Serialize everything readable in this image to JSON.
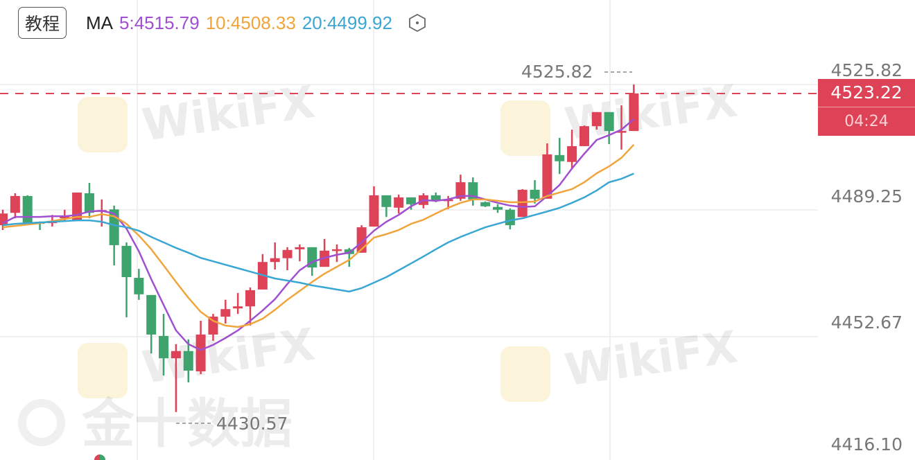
{
  "header": {
    "tutorial_label": "教程",
    "ma_label": "MA",
    "ma5": "5:4515.79",
    "ma10": "10:4508.33",
    "ma20": "20:4499.92",
    "settings_icon": "hexagon-settings-icon"
  },
  "colors": {
    "up": "#dd4257",
    "down": "#3fa36e",
    "ma5": "#a04fd0",
    "ma10": "#f0a43a",
    "ma20": "#3aa6d4"
  },
  "current_price": {
    "price": "4523.22",
    "countdown": "04:24"
  },
  "high_marker": "4525.82",
  "low_marker": "4430.57",
  "watermarks": {
    "brand": "WikiFX",
    "source": "金十数据"
  },
  "chart_data": {
    "type": "candlestick",
    "title": "",
    "y_ticks": [
      "4525.82",
      "4489.25",
      "4452.67",
      "4416.10"
    ],
    "ylim": [
      4416.1,
      4525.82
    ],
    "grid": true,
    "candles_ohlc": [
      [
        4484.9,
        4489.4,
        4483.5,
        4488.3
      ],
      [
        4488.5,
        4494.2,
        4486.9,
        4493.4
      ],
      [
        4493.4,
        4493.6,
        4485.5,
        4485.5
      ],
      [
        4485.9,
        4486.0,
        4483.5,
        4485.3
      ],
      [
        4485.5,
        4487.9,
        4484.5,
        4486.1
      ],
      [
        4486.9,
        4489.4,
        4486.3,
        4487.5
      ],
      [
        4486.3,
        4494.4,
        4486.3,
        4494.4
      ],
      [
        4494.2,
        4497.2,
        4486.9,
        4488.5
      ],
      [
        4488.9,
        4492.4,
        4484.5,
        4489.3
      ],
      [
        4489.5,
        4490.6,
        4473.2,
        4479.1
      ],
      [
        4478.9,
        4479.9,
        4458.1,
        4469.8
      ],
      [
        4469.6,
        4472.2,
        4463.2,
        4464.8
      ],
      [
        4464.6,
        4464.6,
        4447.6,
        4453.1
      ],
      [
        4452.7,
        4459.1,
        4441.2,
        4446.2
      ],
      [
        4446.2,
        4450.3,
        4430.57,
        4448.3
      ],
      [
        4448.3,
        4451.7,
        4439.2,
        4442.6
      ],
      [
        4442.4,
        4457.1,
        4441.6,
        4453.1
      ],
      [
        4453.1,
        4459.1,
        4451.3,
        4458.3
      ],
      [
        4458.3,
        4463.2,
        4456.3,
        4460.5
      ],
      [
        4460.7,
        4465.2,
        4459.1,
        4461.3
      ],
      [
        4461.3,
        4466.8,
        4455.7,
        4466.0
      ],
      [
        4466.2,
        4476.5,
        4466.2,
        4474.2
      ],
      [
        4474.2,
        4479.9,
        4472.0,
        4475.3
      ],
      [
        4475.3,
        4478.5,
        4471.8,
        4477.7
      ],
      [
        4477.9,
        4479.3,
        4474.4,
        4478.5
      ],
      [
        4478.5,
        4478.5,
        4470.2,
        4472.6
      ],
      [
        4472.8,
        4480.9,
        4472.8,
        4477.5
      ],
      [
        4477.5,
        4479.3,
        4474.2,
        4477.9
      ],
      [
        4477.9,
        4478.3,
        4472.8,
        4476.5
      ],
      [
        4476.9,
        4484.9,
        4476.9,
        4484.3
      ],
      [
        4484.5,
        4496.2,
        4484.5,
        4493.6
      ],
      [
        4493.6,
        4493.6,
        4487.3,
        4490.2
      ],
      [
        4490.0,
        4493.8,
        4488.3,
        4493.0
      ],
      [
        4493.0,
        4493.0,
        4489.4,
        4491.0
      ],
      [
        4490.8,
        4494.2,
        4489.8,
        4493.6
      ],
      [
        4493.6,
        4494.4,
        4491.6,
        4492.0
      ],
      [
        4492.2,
        4493.4,
        4489.6,
        4492.4
      ],
      [
        4492.6,
        4499.6,
        4492.0,
        4497.4
      ],
      [
        4497.4,
        4498.8,
        4490.6,
        4492.4
      ],
      [
        4491.6,
        4491.8,
        4490.2,
        4490.4
      ],
      [
        4490.2,
        4491.0,
        4488.5,
        4489.4
      ],
      [
        4489.4,
        4489.8,
        4483.7,
        4484.9
      ],
      [
        4487.3,
        4495.4,
        4487.3,
        4495.2
      ],
      [
        4495.2,
        4498.0,
        4491.2,
        4492.6
      ],
      [
        4492.6,
        4508.7,
        4492.6,
        4505.5
      ],
      [
        4505.3,
        4510.3,
        4499.8,
        4503.5
      ],
      [
        4503.3,
        4512.7,
        4501.2,
        4507.9
      ],
      [
        4507.9,
        4513.9,
        4507.9,
        4513.7
      ],
      [
        4513.7,
        4517.8,
        4512.7,
        4517.8
      ],
      [
        4517.8,
        4517.8,
        4508.5,
        4512.3
      ],
      [
        4512.1,
        4519.8,
        4506.9,
        4512.3
      ],
      [
        4512.3,
        4525.82,
        4512.3,
        4523.22
      ]
    ],
    "series": [
      {
        "name": "MA5",
        "values": [
          4485.5,
          4487.3,
          4487.3,
          4487.3,
          4487.5,
          4487.5,
          4487.9,
          4488.9,
          4489.1,
          4488.3,
          4483.9,
          4477.3,
          4469.2,
          4461.7,
          4454.3,
          4450.3,
          4448.6,
          4450.1,
          4452.1,
          4454.3,
          4457.1,
          4460.1,
          4463.4,
          4467.8,
          4471.8,
          4474.2,
          4475.4,
          4476.3,
          4476.9,
          4479.9,
          4483.3,
          4485.9,
          4487.9,
          4490.4,
          4492.2,
          4492.0,
          4492.4,
          4493.4,
          4493.4,
          4492.4,
          4491.4,
          4490.6,
          4490.2,
          4490.4,
          4493.4,
          4496.6,
          4501.4,
          4505.7,
          4509.7,
          4511.1,
          4512.7,
          4515.79
        ]
      },
      {
        "name": "MA10",
        "values": [
          4484.3,
          4484.7,
          4485.1,
          4485.5,
          4486.1,
          4486.7,
          4487.3,
          4487.3,
          4488.1,
          4487.5,
          4485.3,
          4481.9,
          4477.9,
          4473.2,
          4468.4,
          4463.8,
          4459.7,
          4457.1,
          4455.7,
          4455.3,
          4456.1,
          4457.7,
          4460.3,
          4463.2,
          4465.8,
          4468.4,
          4470.8,
          4472.8,
          4474.8,
          4477.9,
          4481.3,
          4482.3,
          4483.5,
          4485.3,
          4486.5,
          4488.3,
          4490.0,
          4491.4,
          4492.4,
          4492.4,
          4492.0,
          4491.6,
          4491.6,
          4491.8,
          4493.4,
          4494.4,
          4495.4,
          4497.4,
          4500.0,
          4502.0,
          4504.5,
          4508.33
        ]
      },
      {
        "name": "MA20",
        "values": [
          4484.9,
          4485.3,
          4485.5,
          4485.7,
          4485.9,
          4486.1,
          4486.3,
          4486.3,
          4485.9,
          4484.9,
          4484.3,
          4483.3,
          4481.5,
          4479.9,
          4478.3,
          4476.9,
          4475.4,
          4474.4,
          4473.4,
          4472.4,
          4471.4,
          4470.4,
          4469.4,
          4468.8,
          4468.2,
          4467.4,
          4466.8,
          4466.2,
          4465.6,
          4466.6,
          4468.2,
          4469.8,
          4471.8,
          4473.8,
          4475.8,
          4477.9,
          4479.9,
          4481.5,
          4482.9,
          4484.3,
          4485.3,
          4486.3,
          4486.9,
          4487.9,
          4488.9,
          4489.95,
          4491.4,
          4493.0,
          4495.0,
          4497.4,
          4498.4,
          4499.92
        ]
      }
    ]
  }
}
